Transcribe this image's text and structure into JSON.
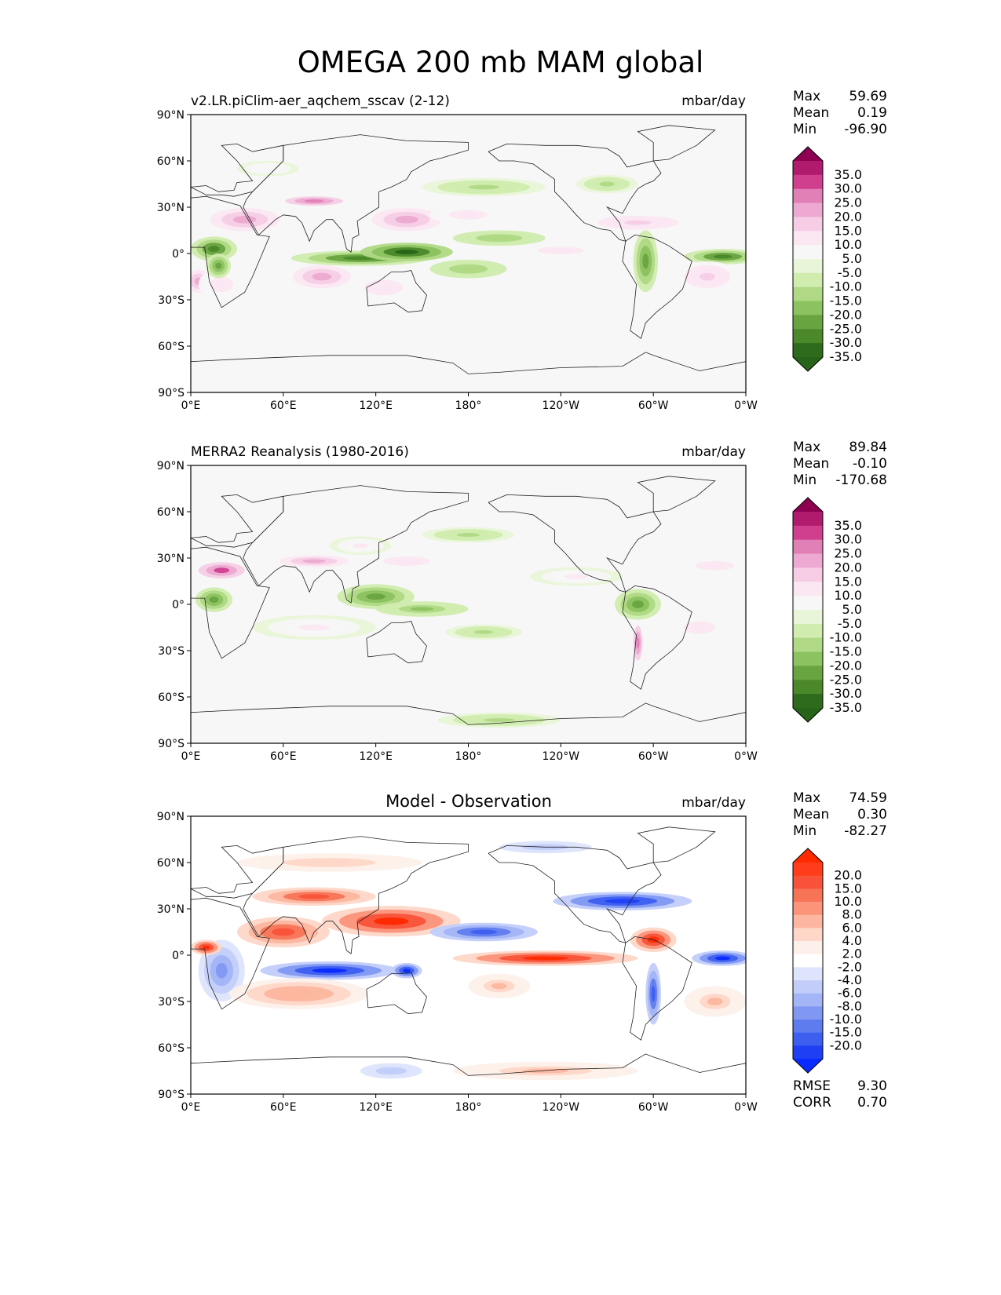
{
  "figure": {
    "title": "OMEGA 200 mb MAM global"
  },
  "axes": {
    "lat_ticks": [
      "90°N",
      "60°N",
      "30°N",
      "0°",
      "30°S",
      "60°S",
      "90°S"
    ],
    "lon_ticks": [
      "0°E",
      "60°E",
      "120°E",
      "180°",
      "120°W",
      "60°W",
      "0°W"
    ]
  },
  "chart_data": [
    {
      "type": "heatmap",
      "subtitle": "v2.LR.piClim-aer_aqchem_sscav (2-12)",
      "units": "mbar/day",
      "stats": [
        [
          "Max",
          "59.69"
        ],
        [
          "Mean",
          "0.19"
        ],
        [
          "Min",
          "-96.90"
        ]
      ],
      "colorbar": {
        "labels": [
          "35.0",
          "30.0",
          "25.0",
          "20.0",
          "15.0",
          "10.0",
          "5.0",
          "-5.0",
          "-10.0",
          "-15.0",
          "-20.0",
          "-25.0",
          "-30.0",
          "-35.0"
        ],
        "colors": [
          "#8e0152",
          "#b11b6d",
          "#cf3f8e",
          "#e17fb7",
          "#eda9d1",
          "#f6cde5",
          "#fbe7f2",
          "#f7f7f7",
          "#e9f5d8",
          "#d0ecae",
          "#afd985",
          "#8cc25f",
          "#68a43f",
          "#4a882a",
          "#2e6b1d",
          "#276419"
        ]
      },
      "fields": [
        {
          "lon": 35,
          "lat": 22,
          "rx": 30,
          "ry": 10,
          "v": 20
        },
        {
          "lon": 5,
          "lat": -18,
          "rx": 10,
          "ry": 10,
          "v": 18
        },
        {
          "lon": 20,
          "lat": -20,
          "rx": 15,
          "ry": 10,
          "v": 10
        },
        {
          "lon": 15,
          "lat": 3,
          "rx": 15,
          "ry": 8,
          "v": -25
        },
        {
          "lon": 18,
          "lat": -8,
          "rx": 8,
          "ry": 8,
          "v": -20
        },
        {
          "lon": 85,
          "lat": -15,
          "rx": 25,
          "ry": 10,
          "v": 22
        },
        {
          "lon": 125,
          "lat": -22,
          "rx": 25,
          "ry": 10,
          "v": 12
        },
        {
          "lon": 110,
          "lat": -3,
          "rx": 45,
          "ry": 5,
          "v": -25
        },
        {
          "lon": 140,
          "lat": 1,
          "rx": 30,
          "ry": 6,
          "v": -35
        },
        {
          "lon": 140,
          "lat": 22,
          "rx": 30,
          "ry": 10,
          "v": 22
        },
        {
          "lon": 180,
          "lat": 25,
          "rx": 25,
          "ry": 6,
          "v": 10
        },
        {
          "lon": 190,
          "lat": 43,
          "rx": 40,
          "ry": 6,
          "v": -8
        },
        {
          "lon": 200,
          "lat": 10,
          "rx": 30,
          "ry": 5,
          "v": -12
        },
        {
          "lon": 180,
          "lat": -10,
          "rx": 25,
          "ry": 6,
          "v": -12
        },
        {
          "lon": 240,
          "lat": 2,
          "rx": 30,
          "ry": 5,
          "v": 10
        },
        {
          "lon": 270,
          "lat": 45,
          "rx": 20,
          "ry": 6,
          "v": -8
        },
        {
          "lon": 290,
          "lat": 20,
          "rx": 35,
          "ry": 6,
          "v": 15
        },
        {
          "lon": 295,
          "lat": -5,
          "rx": 8,
          "ry": 20,
          "v": -20
        },
        {
          "lon": 345,
          "lat": -2,
          "rx": 25,
          "ry": 5,
          "v": -25
        },
        {
          "lon": 335,
          "lat": -15,
          "rx": 20,
          "ry": 10,
          "v": 15
        },
        {
          "lon": 80,
          "lat": 34,
          "rx": 25,
          "ry": 4,
          "v": 25
        },
        {
          "lon": 50,
          "lat": 55,
          "rx": 20,
          "ry": 5,
          "v": 6
        }
      ]
    },
    {
      "type": "heatmap",
      "subtitle": "MERRA2 Reanalysis (1980-2016)",
      "units": "mbar/day",
      "stats": [
        [
          "Max",
          "89.84"
        ],
        [
          "Mean",
          "-0.10"
        ],
        [
          "Min",
          "-170.68"
        ]
      ],
      "colorbar": {
        "labels": [
          "35.0",
          "30.0",
          "25.0",
          "20.0",
          "15.0",
          "10.0",
          "5.0",
          "-5.0",
          "-10.0",
          "-15.0",
          "-20.0",
          "-25.0",
          "-30.0",
          "-35.0"
        ],
        "colors": [
          "#8e0152",
          "#b11b6d",
          "#cf3f8e",
          "#e17fb7",
          "#eda9d1",
          "#f6cde5",
          "#fbe7f2",
          "#f7f7f7",
          "#e9f5d8",
          "#d0ecae",
          "#afd985",
          "#8cc25f",
          "#68a43f",
          "#4a882a",
          "#2e6b1d",
          "#276419"
        ]
      },
      "fields": [
        {
          "lon": 20,
          "lat": 22,
          "rx": 20,
          "ry": 7,
          "v": 28
        },
        {
          "lon": 15,
          "lat": 3,
          "rx": 12,
          "ry": 8,
          "v": -22
        },
        {
          "lon": 80,
          "lat": 28,
          "rx": 30,
          "ry": 5,
          "v": 18
        },
        {
          "lon": 110,
          "lat": 38,
          "rx": 20,
          "ry": 6,
          "v": 8
        },
        {
          "lon": 120,
          "lat": 5,
          "rx": 25,
          "ry": 8,
          "v": -18
        },
        {
          "lon": 150,
          "lat": -3,
          "rx": 30,
          "ry": 5,
          "v": -15
        },
        {
          "lon": 80,
          "lat": -15,
          "rx": 40,
          "ry": 8,
          "v": 8
        },
        {
          "lon": 190,
          "lat": -18,
          "rx": 25,
          "ry": 5,
          "v": -10
        },
        {
          "lon": 140,
          "lat": 28,
          "rx": 30,
          "ry": 6,
          "v": 12
        },
        {
          "lon": 250,
          "lat": 18,
          "rx": 30,
          "ry": 6,
          "v": 8
        },
        {
          "lon": 290,
          "lat": 0,
          "rx": 15,
          "ry": 10,
          "v": -20
        },
        {
          "lon": 290,
          "lat": -25,
          "rx": 4,
          "ry": 15,
          "v": 25
        },
        {
          "lon": 330,
          "lat": -15,
          "rx": 20,
          "ry": 8,
          "v": 12
        },
        {
          "lon": 200,
          "lat": -75,
          "rx": 40,
          "ry": 5,
          "v": -8
        },
        {
          "lon": 180,
          "lat": 45,
          "rx": 30,
          "ry": 5,
          "v": -8
        },
        {
          "lon": 340,
          "lat": 25,
          "rx": 25,
          "ry": 6,
          "v": 10
        }
      ]
    },
    {
      "type": "heatmap",
      "subtitle": "Model - Observation",
      "units": "mbar/day",
      "stats": [
        [
          "Max",
          "74.59"
        ],
        [
          "Mean",
          "0.30"
        ],
        [
          "Min",
          "-82.27"
        ]
      ],
      "colorbar": {
        "labels": [
          "20.0",
          "15.0",
          "10.0",
          "8.0",
          "6.0",
          "4.0",
          "2.0",
          "-2.0",
          "-4.0",
          "-6.0",
          "-8.0",
          "-10.0",
          "-15.0",
          "-20.0"
        ],
        "colors": [
          "#ff2a00",
          "#ff3d1a",
          "#f8533a",
          "#f77457",
          "#fb9479",
          "#fdb69f",
          "#fed7c8",
          "#fdf0ea",
          "#ffffff",
          "#dde4fc",
          "#c2cdfa",
          "#a3b4f7",
          "#8198f3",
          "#5f7cef",
          "#3d5ff0",
          "#1f3ff5",
          "#0a2aff"
        ]
      },
      "fields": [
        {
          "lon": 130,
          "lat": 22,
          "rx": 45,
          "ry": 10,
          "v": 20
        },
        {
          "lon": 60,
          "lat": 15,
          "rx": 30,
          "ry": 10,
          "v": 15
        },
        {
          "lon": 80,
          "lat": 38,
          "rx": 40,
          "ry": 6,
          "v": 15
        },
        {
          "lon": 90,
          "lat": -10,
          "rx": 45,
          "ry": 6,
          "v": -20
        },
        {
          "lon": 230,
          "lat": -2,
          "rx": 60,
          "ry": 5,
          "v": 18
        },
        {
          "lon": 190,
          "lat": 15,
          "rx": 35,
          "ry": 6,
          "v": -15
        },
        {
          "lon": 280,
          "lat": 35,
          "rx": 45,
          "ry": 6,
          "v": -18
        },
        {
          "lon": 300,
          "lat": 10,
          "rx": 15,
          "ry": 8,
          "v": 18
        },
        {
          "lon": 300,
          "lat": -25,
          "rx": 5,
          "ry": 20,
          "v": -15
        },
        {
          "lon": 345,
          "lat": -2,
          "rx": 20,
          "ry": 5,
          "v": -20
        },
        {
          "lon": 20,
          "lat": -10,
          "rx": 15,
          "ry": 20,
          "v": -10
        },
        {
          "lon": 10,
          "lat": 5,
          "rx": 10,
          "ry": 5,
          "v": 20
        },
        {
          "lon": 70,
          "lat": -25,
          "rx": 45,
          "ry": 10,
          "v": 8
        },
        {
          "lon": 200,
          "lat": -20,
          "rx": 20,
          "ry": 8,
          "v": 6
        },
        {
          "lon": 140,
          "lat": -10,
          "rx": 10,
          "ry": 5,
          "v": -20
        },
        {
          "lon": 230,
          "lat": -75,
          "rx": 60,
          "ry": 6,
          "v": 6
        },
        {
          "lon": 90,
          "lat": 60,
          "rx": 60,
          "ry": 6,
          "v": 5
        },
        {
          "lon": 230,
          "lat": 70,
          "rx": 30,
          "ry": 4,
          "v": -6
        },
        {
          "lon": 130,
          "lat": -75,
          "rx": 20,
          "ry": 5,
          "v": -6
        },
        {
          "lon": 340,
          "lat": -30,
          "rx": 20,
          "ry": 10,
          "v": 6
        }
      ],
      "rmse": "9.30",
      "corr": "0.70"
    }
  ]
}
